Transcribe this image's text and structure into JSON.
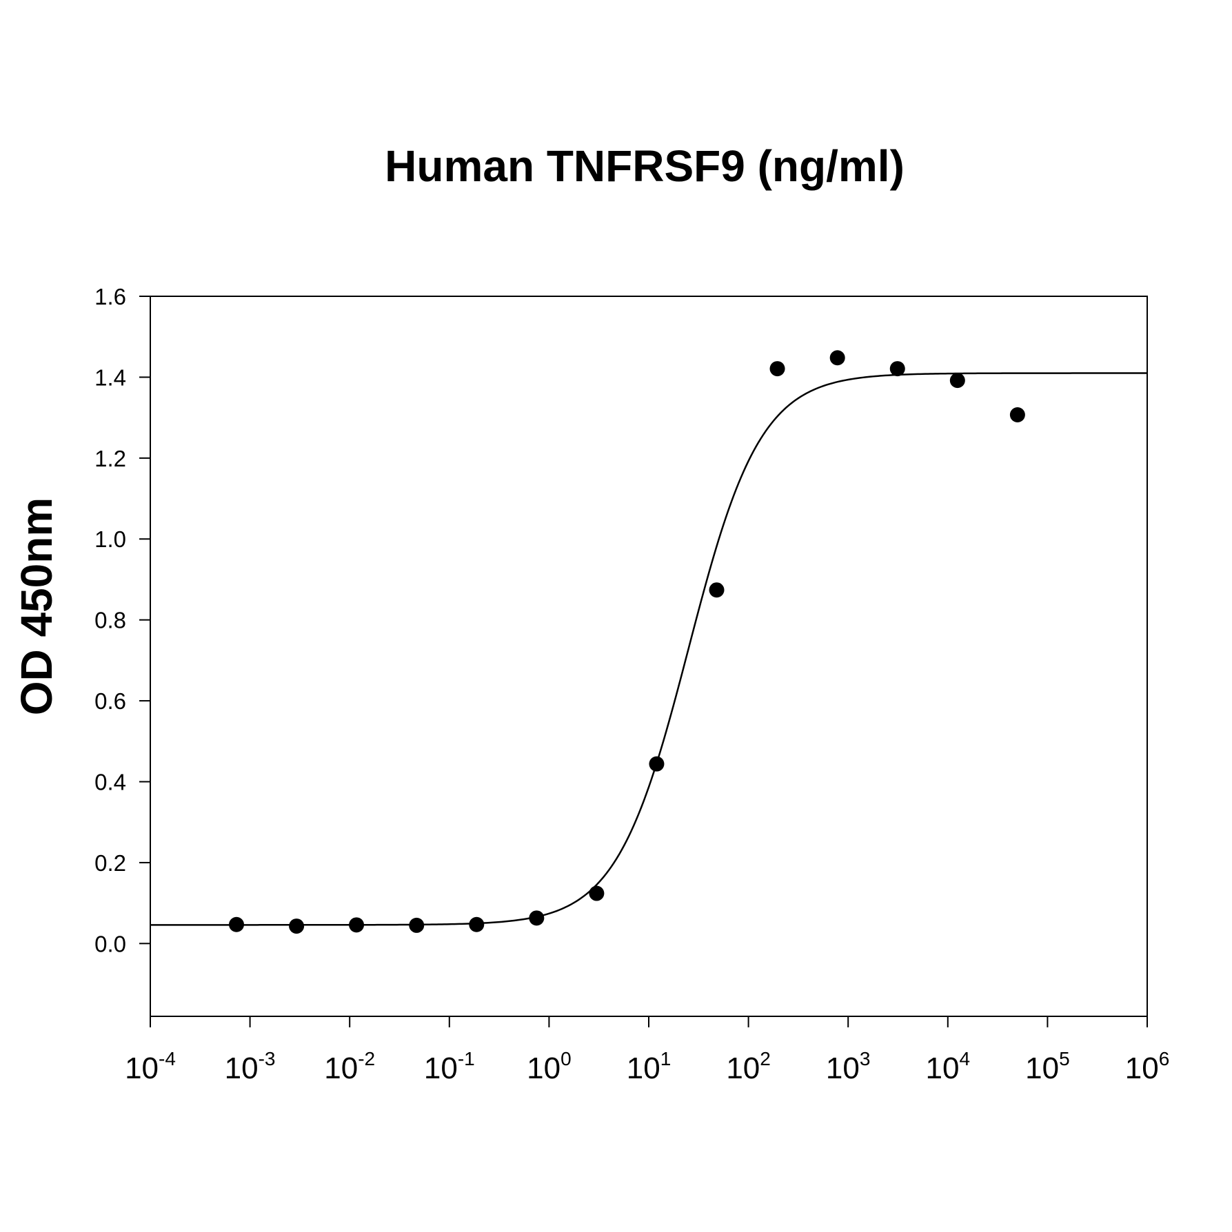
{
  "chart_data": {
    "type": "scatter",
    "title": "Human TNFRSF9 (ng/ml)",
    "xlabel": "",
    "ylabel": "OD 450nm",
    "x_scale": "log10",
    "xlim": [
      0.0001,
      1000000
    ],
    "ylim": [
      -0.18,
      1.6
    ],
    "y_ticks": [
      "0.0",
      "0.2",
      "0.4",
      "0.6",
      "0.8",
      "1.0",
      "1.2",
      "1.4",
      "1.6"
    ],
    "x_ticks": [
      {
        "base": "10",
        "exp": "-4"
      },
      {
        "base": "10",
        "exp": "-3"
      },
      {
        "base": "10",
        "exp": "-2"
      },
      {
        "base": "10",
        "exp": "-1"
      },
      {
        "base": "10",
        "exp": "0"
      },
      {
        "base": "10",
        "exp": "1"
      },
      {
        "base": "10",
        "exp": "2"
      },
      {
        "base": "10",
        "exp": "3"
      },
      {
        "base": "10",
        "exp": "4"
      },
      {
        "base": "10",
        "exp": "5"
      },
      {
        "base": "10",
        "exp": "6"
      }
    ],
    "grid": false,
    "series": [
      {
        "type": "scatter",
        "x": [
          0.000732,
          0.00293,
          0.0117,
          0.0469,
          0.1875,
          0.75,
          3,
          12,
          48,
          195,
          781,
          3125,
          12500,
          50000
        ],
        "y": [
          0.047,
          0.043,
          0.046,
          0.045,
          0.047,
          0.063,
          0.124,
          0.444,
          0.874,
          1.421,
          1.448,
          1.421,
          1.392,
          1.307
        ]
      },
      {
        "type": "line",
        "fit": "4-parameter logistic",
        "bottom": 0.046,
        "top": 1.41,
        "ec50": 25,
        "hill": 1.2
      }
    ],
    "marker_color": "#000000",
    "line_color": "#000000"
  }
}
